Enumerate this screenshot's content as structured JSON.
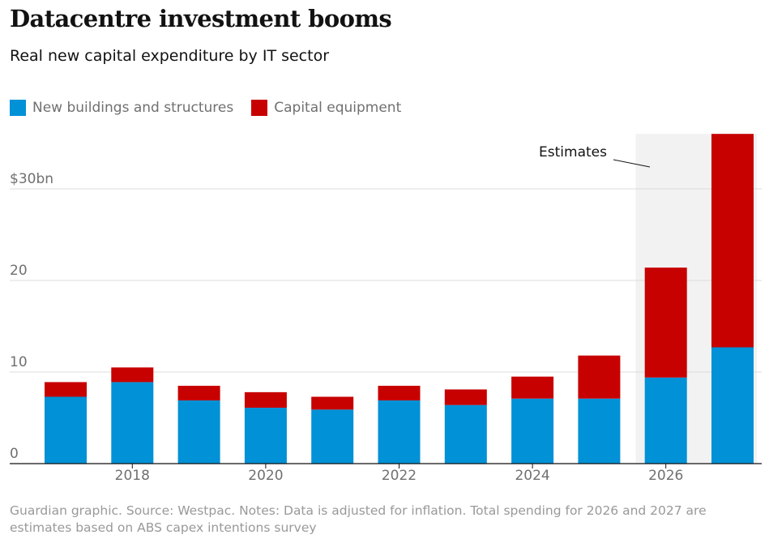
{
  "title": "Datacentre investment booms",
  "subtitle": "Real new capital expenditure by IT sector",
  "legend": [
    {
      "label": "New buildings and structures",
      "color": "#0091d6"
    },
    {
      "label": "Capital equipment",
      "color": "#c70000"
    }
  ],
  "chart_data": {
    "type": "bar",
    "stacked": true,
    "x": [
      2017,
      2018,
      2019,
      2020,
      2021,
      2022,
      2023,
      2024,
      2025,
      2026,
      2027
    ],
    "x_tick_labels": [
      "2018",
      "2020",
      "2022",
      "2024",
      "2026"
    ],
    "series": [
      {
        "name": "New buildings and structures",
        "color": "#0091d6",
        "values": [
          7.3,
          8.9,
          6.9,
          6.1,
          5.9,
          6.9,
          6.4,
          7.1,
          7.1,
          9.4,
          12.7
        ]
      },
      {
        "name": "Capital equipment",
        "color": "#c70000",
        "values": [
          1.6,
          1.6,
          1.6,
          1.7,
          1.4,
          1.6,
          1.7,
          2.4,
          4.7,
          12.0,
          23.3
        ]
      }
    ],
    "ylim": [
      0,
      36
    ],
    "y_ticks": [
      0,
      10,
      20,
      30
    ],
    "y_tick_labels": [
      "0",
      "10",
      "20",
      "$30bn"
    ],
    "estimate_years": [
      2026,
      2027
    ],
    "annotation": "Estimates",
    "grid": true
  },
  "footnote": "Guardian graphic. Source: Westpac. Notes: Data is adjusted for inflation. Total spending for 2026 and 2027 are estimates based on ABS capex intentions survey"
}
